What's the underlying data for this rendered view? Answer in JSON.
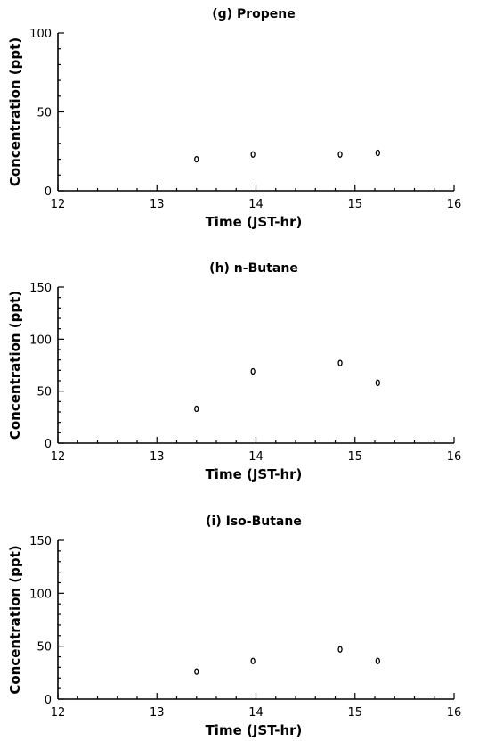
{
  "chart_data": [
    {
      "type": "scatter",
      "title": "(g)  Propene",
      "xlabel": "Time   (JST-hr)",
      "ylabel": "Concentration   (ppt)",
      "xlim": [
        12,
        16
      ],
      "ylim": [
        0,
        100
      ],
      "xticks": [
        "12",
        "13",
        "14",
        "15",
        "16"
      ],
      "yticks": [
        "0",
        "50",
        "100"
      ],
      "x": [
        13.4,
        13.97,
        14.85,
        15.23
      ],
      "y": [
        20,
        23,
        23,
        24
      ],
      "grid": false
    },
    {
      "type": "scatter",
      "title": "(h)  n-Butane",
      "xlabel": "Time   (JST-hr)",
      "ylabel": "Concentration   (ppt)",
      "xlim": [
        12,
        16
      ],
      "ylim": [
        0,
        150
      ],
      "xticks": [
        "12",
        "13",
        "14",
        "15",
        "16"
      ],
      "yticks": [
        "0",
        "50",
        "100",
        "150"
      ],
      "x": [
        13.4,
        13.97,
        14.85,
        15.23
      ],
      "y": [
        33,
        69,
        77,
        58
      ],
      "grid": false
    },
    {
      "type": "scatter",
      "title": "(i)  Iso-Butane",
      "xlabel": "Time   (JST-hr)",
      "ylabel": "Concentration   (ppt)",
      "xlim": [
        12,
        16
      ],
      "ylim": [
        0,
        150
      ],
      "xticks": [
        "12",
        "13",
        "14",
        "15",
        "16"
      ],
      "yticks": [
        "0",
        "50",
        "100",
        "150"
      ],
      "x": [
        13.4,
        13.97,
        14.85,
        15.23
      ],
      "y": [
        26,
        36,
        47,
        36
      ],
      "grid": false
    }
  ]
}
